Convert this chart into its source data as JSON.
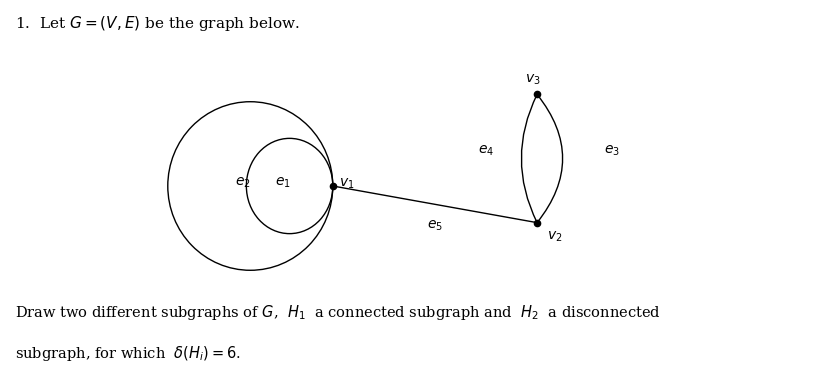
{
  "title_text": "1.  Let $G = (V, E)$ be the graph below.",
  "bottom_text_line1": "Draw two different subgraphs of $G$,  $H_1$  a connected subgraph and  $H_2$  a disconnected",
  "bottom_text_line2": "subgraph, for which  $\\delta(H_i) = 6$.",
  "v1": [
    0.42,
    0.5
  ],
  "v2": [
    0.68,
    0.4
  ],
  "v3": [
    0.68,
    0.75
  ],
  "node_color": "black",
  "background_color": "white",
  "e1_label": "$e_1$",
  "e2_label": "$e_2$",
  "e3_label": "$e_3$",
  "e4_label": "$e_4$",
  "e5_label": "$e_5$",
  "v1_label": "$v_1$",
  "v2_label": "$v_2$",
  "v3_label": "$v_3$"
}
